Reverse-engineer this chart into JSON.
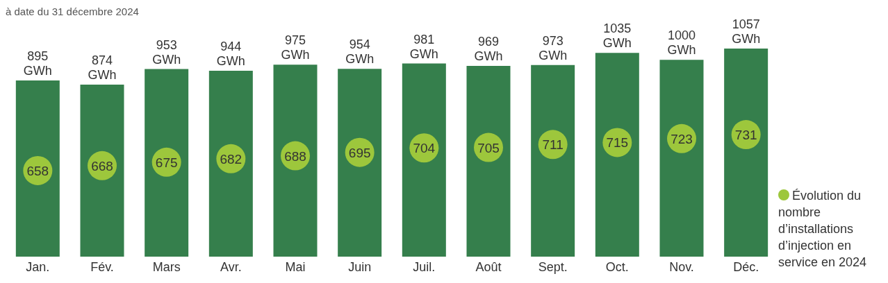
{
  "chart_data": {
    "type": "bar",
    "annotations": [
      "à date du 31 décembre 2024"
    ],
    "categories": [
      "Jan.",
      "Fév.",
      "Mars",
      "Avr.",
      "Mai",
      "Juin",
      "Juil.",
      "Août",
      "Sept.",
      "Oct.",
      "Nov.",
      "Déc."
    ],
    "series": [
      {
        "color": "#357f4c",
        "values": [
          895,
          874,
          953,
          944,
          975,
          954,
          981,
          969,
          973,
          1035,
          1000,
          1057
        ],
        "value_labels": [
          "895 GWh",
          "874 GWh",
          "953 GWh",
          "944 GWh",
          "975 GWh",
          "954 GWh",
          "981 GWh",
          "969 GWh",
          "973 GWh",
          "1035 GWh",
          "1000 GWh",
          "1057 GWh"
        ]
      },
      {
        "type": "scatter",
        "axis": "y2",
        "name": "Évolution du nombre d’installations d’injection en service en 2024",
        "color": "#9dc73c",
        "values": [
          658,
          668,
          675,
          682,
          688,
          695,
          704,
          705,
          711,
          715,
          723,
          731
        ],
        "data_labels": true
      }
    ],
    "legend": "right",
    "marker": "circle",
    "tick_labels": "x"
  }
}
